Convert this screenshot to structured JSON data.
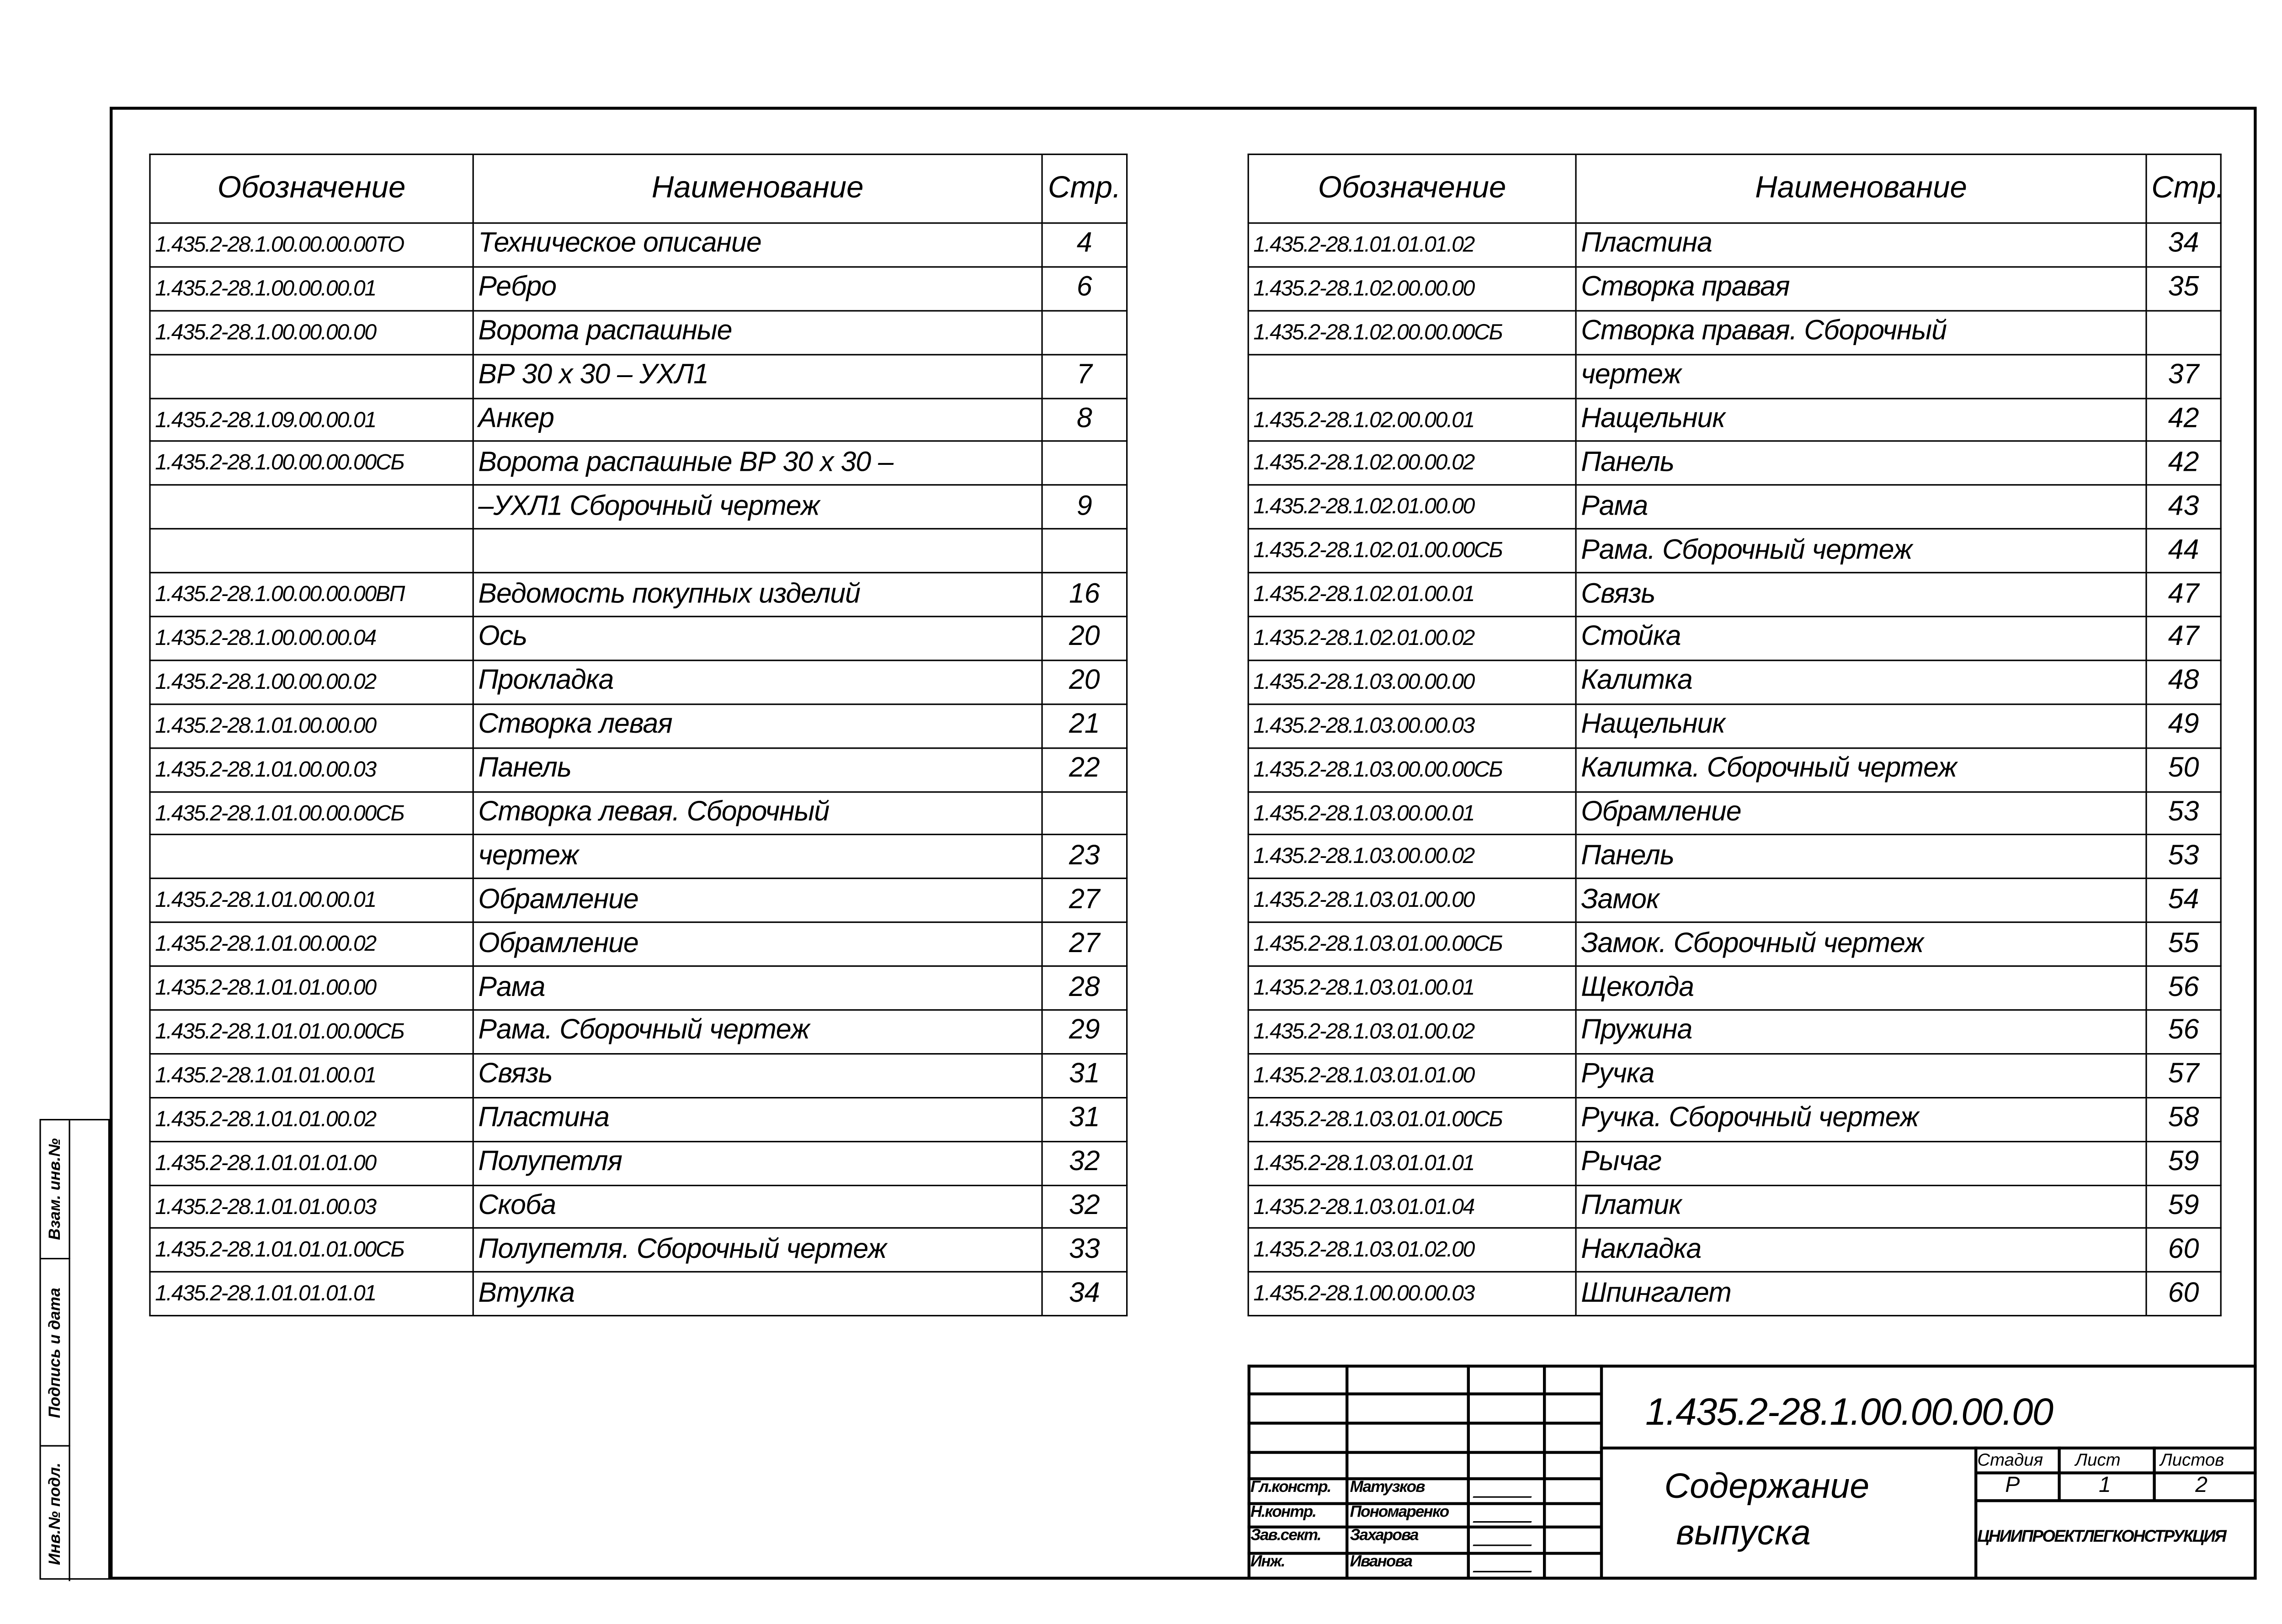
{
  "headers": {
    "code": "Обозначение",
    "name": "Наименование",
    "page": "Стр."
  },
  "left_rows": [
    {
      "code": "1.435.2-28.1.00.00.00.00ТО",
      "name": "Техническое описание",
      "page": "4"
    },
    {
      "code": "1.435.2-28.1.00.00.00.01",
      "name": "Ребро",
      "page": "6"
    },
    {
      "code": "1.435.2-28.1.00.00.00.00",
      "name": "Ворота распашные",
      "page": ""
    },
    {
      "code": "",
      "name": "   ВР 30 х 30 – УХЛ1",
      "page": "7"
    },
    {
      "code": "1.435.2-28.1.09.00.00.01",
      "name": "Анкер",
      "page": "8"
    },
    {
      "code": "1.435.2-28.1.00.00.00.00СБ",
      "name": "Ворота распашные ВР 30 х 30 –",
      "page": ""
    },
    {
      "code": "",
      "name": "–УХЛ1 Сборочный чертеж",
      "page": "9"
    },
    {
      "code": "",
      "name": "",
      "page": ""
    },
    {
      "code": "1.435.2-28.1.00.00.00.00ВП",
      "name": "Ведомость покупных изделий",
      "page": "16"
    },
    {
      "code": "1.435.2-28.1.00.00.00.04",
      "name": "Ось",
      "page": "20"
    },
    {
      "code": "1.435.2-28.1.00.00.00.02",
      "name": "Прокладка",
      "page": "20"
    },
    {
      "code": "1.435.2-28.1.01.00.00.00",
      "name": "Створка левая",
      "page": "21"
    },
    {
      "code": "1.435.2-28.1.01.00.00.03",
      "name": "Панель",
      "page": "22"
    },
    {
      "code": "1.435.2-28.1.01.00.00.00СБ",
      "name": "Створка левая. Сборочный",
      "page": ""
    },
    {
      "code": "",
      "name": "чертеж",
      "page": "23"
    },
    {
      "code": "1.435.2-28.1.01.00.00.01",
      "name": "Обрамление",
      "page": "27"
    },
    {
      "code": "1.435.2-28.1.01.00.00.02",
      "name": "Обрамление",
      "page": "27"
    },
    {
      "code": "1.435.2-28.1.01.01.00.00",
      "name": "Рама",
      "page": "28"
    },
    {
      "code": "1.435.2-28.1.01.01.00.00СБ",
      "name": "Рама. Сборочный чертеж",
      "page": "29"
    },
    {
      "code": "1.435.2-28.1.01.01.00.01",
      "name": "Связь",
      "page": "31"
    },
    {
      "code": "1.435.2-28.1.01.01.00.02",
      "name": "Пластина",
      "page": "31"
    },
    {
      "code": "1.435.2-28.1.01.01.01.00",
      "name": "Полупетля",
      "page": "32"
    },
    {
      "code": "1.435.2-28.1.01.01.00.03",
      "name": "Скоба",
      "page": "32"
    },
    {
      "code": "1.435.2-28.1.01.01.01.00СБ",
      "name": "Полупетля. Сборочный чертеж",
      "page": "33"
    },
    {
      "code": "1.435.2-28.1.01.01.01.01",
      "name": "Втулка",
      "page": "34"
    }
  ],
  "right_rows": [
    {
      "code": "1.435.2-28.1.01.01.01.02",
      "name": "Пластина",
      "page": "34"
    },
    {
      "code": "1.435.2-28.1.02.00.00.00",
      "name": "Створка правая",
      "page": "35"
    },
    {
      "code": "1.435.2-28.1.02.00.00.00СБ",
      "name": "Створка правая. Сборочный",
      "page": ""
    },
    {
      "code": "",
      "name": "чертеж",
      "page": "37"
    },
    {
      "code": "1.435.2-28.1.02.00.00.01",
      "name": "Нащельник",
      "page": "42"
    },
    {
      "code": "1.435.2-28.1.02.00.00.02",
      "name": "Панель",
      "page": "42"
    },
    {
      "code": "1.435.2-28.1.02.01.00.00",
      "name": "Рама",
      "page": "43"
    },
    {
      "code": "1.435.2-28.1.02.01.00.00СБ",
      "name": "Рама. Сборочный чертеж",
      "page": "44"
    },
    {
      "code": "1.435.2-28.1.02.01.00.01",
      "name": "Связь",
      "page": "47"
    },
    {
      "code": "1.435.2-28.1.02.01.00.02",
      "name": "Стойка",
      "page": "47"
    },
    {
      "code": "1.435.2-28.1.03.00.00.00",
      "name": "Калитка",
      "page": "48"
    },
    {
      "code": "1.435.2-28.1.03.00.00.03",
      "name": "Нащельник",
      "page": "49"
    },
    {
      "code": "1.435.2-28.1.03.00.00.00СБ",
      "name": "Калитка. Сборочный чертеж",
      "page": "50"
    },
    {
      "code": "1.435.2-28.1.03.00.00.01",
      "name": "Обрамление",
      "page": "53"
    },
    {
      "code": "1.435.2-28.1.03.00.00.02",
      "name": "Панель",
      "page": "53"
    },
    {
      "code": "1.435.2-28.1.03.01.00.00",
      "name": "Замок",
      "page": "54"
    },
    {
      "code": "1.435.2-28.1.03.01.00.00СБ",
      "name": "Замок. Сборочный чертеж",
      "page": "55"
    },
    {
      "code": "1.435.2-28.1.03.01.00.01",
      "name": "Щеколда",
      "page": "56"
    },
    {
      "code": "1.435.2-28.1.03.01.00.02",
      "name": "Пружина",
      "page": "56"
    },
    {
      "code": "1.435.2-28.1.03.01.01.00",
      "name": "Ручка",
      "page": "57"
    },
    {
      "code": "1.435.2-28.1.03.01.01.00СБ",
      "name": "Ручка. Сборочный чертеж",
      "page": "58"
    },
    {
      "code": "1.435.2-28.1.03.01.01.01",
      "name": "Рычаг",
      "page": "59"
    },
    {
      "code": "1.435.2-28.1.03.01.01.04",
      "name": "Платик",
      "page": "59"
    },
    {
      "code": "1.435.2-28.1.03.01.02.00",
      "name": "Накладка",
      "page": "60"
    },
    {
      "code": "1.435.2-28.1.00.00.00.03",
      "name": "Шпингалет",
      "page": "60"
    }
  ],
  "stamp": {
    "replaced_inv": "Взам. инв.№",
    "signature_date": "Подпись и дата",
    "orig_inv": "Инв.№ подл."
  },
  "title_block": {
    "doc_code": "1.435.2-28.1.00.00.00.00",
    "title_line1": "Содержание",
    "title_line2": "выпуска",
    "stage_label": "Стадия",
    "sheet_label": "Лист",
    "sheets_label": "Листов",
    "stage": "Р",
    "sheet": "1",
    "sheets": "2",
    "organization": "ЦНИИПРОЕКТЛЕГКОНСТРУКЦИЯ",
    "signers": [
      {
        "role": "Гл.констр.",
        "name": "Матузков"
      },
      {
        "role": "Н.контр.",
        "name": "Пономаренко"
      },
      {
        "role": "Зав.сект.",
        "name": "Захарова"
      },
      {
        "role": "Инж.",
        "name": "Иванова"
      }
    ]
  }
}
